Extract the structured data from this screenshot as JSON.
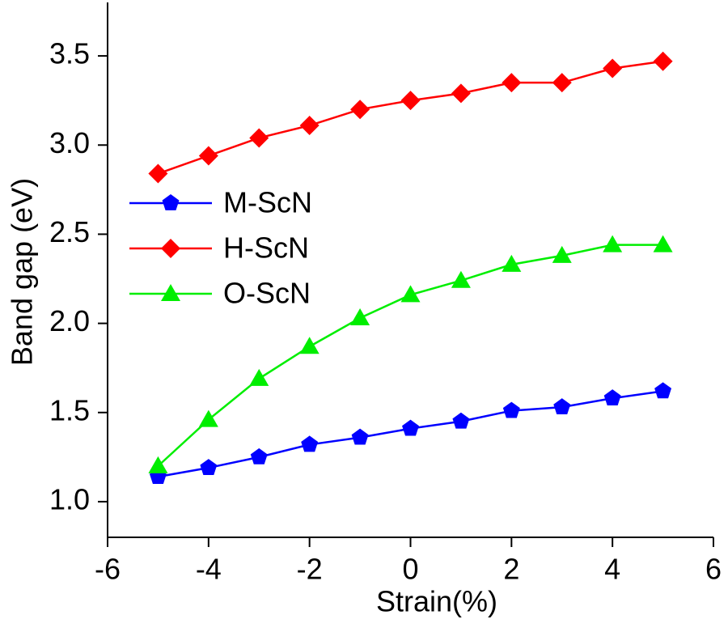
{
  "chart_data": {
    "type": "line",
    "xlabel": "Strain(%)",
    "ylabel": "Band gap (eV)",
    "x": [
      -5,
      -4,
      -3,
      -2,
      -1,
      0,
      1,
      2,
      3,
      4,
      5
    ],
    "series": [
      {
        "name": "M-ScN",
        "color": "#0000ff",
        "marker": "pentagon",
        "values": [
          1.14,
          1.19,
          1.25,
          1.32,
          1.36,
          1.41,
          1.45,
          1.51,
          1.53,
          1.58,
          1.62
        ]
      },
      {
        "name": "H-ScN",
        "color": "#ff0000",
        "marker": "diamond",
        "values": [
          2.84,
          2.94,
          3.04,
          3.11,
          3.2,
          3.25,
          3.29,
          3.35,
          3.35,
          3.43,
          3.47
        ]
      },
      {
        "name": "O-ScN",
        "color": "#00ee00",
        "marker": "triangle",
        "values": [
          1.2,
          1.46,
          1.69,
          1.87,
          2.03,
          2.16,
          2.24,
          2.33,
          2.38,
          2.44,
          2.44
        ]
      }
    ],
    "xlim": [
      -6,
      6
    ],
    "xticks": [
      -6,
      -4,
      -2,
      0,
      2,
      4,
      6
    ],
    "ylim": [
      0.8,
      3.8
    ],
    "yticks": [
      {
        "value": 1.0,
        "label": "1.0"
      },
      {
        "value": 1.5,
        "label": "1.5"
      },
      {
        "value": 2.0,
        "label": "2.0"
      },
      {
        "value": 2.5,
        "label": "2.5"
      },
      {
        "value": 3.0,
        "label": "3.0"
      },
      {
        "value": 3.5,
        "label": "3.5"
      }
    ],
    "legend": "left"
  }
}
